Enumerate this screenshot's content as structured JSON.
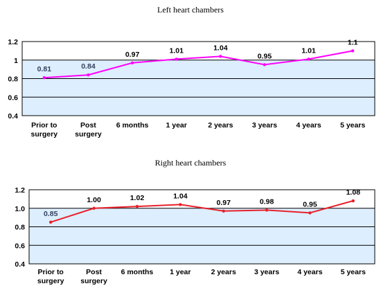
{
  "chart_data": [
    {
      "type": "line",
      "title": "Left heart chambers",
      "categories": [
        [
          "Prior to",
          "surgery"
        ],
        [
          "Post",
          "surgery"
        ],
        [
          "6 months"
        ],
        [
          "1 year"
        ],
        [
          "2 years"
        ],
        [
          "3 years"
        ],
        [
          "4 years"
        ],
        [
          "5 years"
        ]
      ],
      "values": [
        0.81,
        0.84,
        0.97,
        1.01,
        1.04,
        0.95,
        1.01,
        1.1
      ],
      "data_labels": [
        "0.81",
        "0.84",
        "0.97",
        "1.01",
        "1.04",
        "0.95",
        "1.01",
        "1.1"
      ],
      "yticks": [
        "0.4",
        "0.6",
        "0.8",
        "1",
        "1.2"
      ],
      "ylim": [
        0.4,
        1.2
      ],
      "grid": true,
      "line_color": "#ff00ff",
      "marker_color": "#ff00ff",
      "shaded_band": [
        0.4,
        1.0
      ],
      "band_color": "#ddeeff"
    },
    {
      "type": "line",
      "title": "Right heart chambers",
      "categories": [
        [
          "Prior to",
          "surgery"
        ],
        [
          "Post",
          "surgery"
        ],
        [
          "6 months"
        ],
        [
          "1 year"
        ],
        [
          "2 years"
        ],
        [
          "3 years"
        ],
        [
          "4 years"
        ],
        [
          "5 years"
        ]
      ],
      "values": [
        0.85,
        1.0,
        1.02,
        1.04,
        0.97,
        0.98,
        0.95,
        1.08
      ],
      "data_labels": [
        "0.85",
        "1.00",
        "1.02",
        "1.04",
        "0.97",
        "0.98",
        "0.95",
        "1.08"
      ],
      "yticks": [
        "0.4",
        "0.6",
        "0.8",
        "1.0",
        "1.2"
      ],
      "ylim": [
        0.4,
        1.2
      ],
      "grid": true,
      "line_color": "#e8202a",
      "marker_color": "#e8202a",
      "shaded_band": [
        0.4,
        1.0
      ],
      "band_color": "#ddeeff"
    }
  ]
}
